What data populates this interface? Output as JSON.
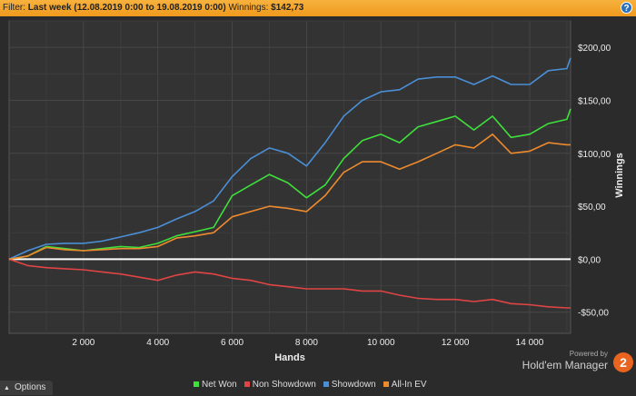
{
  "filter": {
    "label": "Filter:",
    "value": "Last week (12.08.2019 0:00 to 19.08.2019 0:00)",
    "winnings_label": "Winnings:",
    "winnings_value": "$142,73",
    "help": "?"
  },
  "options": {
    "label": "Options"
  },
  "brand": {
    "powered_by": "Powered by",
    "name": "Hold'em Manager",
    "logo": "2"
  },
  "colors": {
    "net_won": "#3ee03b",
    "non_showdown": "#e04444",
    "showdown": "#4a8fd6",
    "all_in_ev": "#ee8a2e"
  },
  "chart_data": {
    "type": "line",
    "xlabel": "Hands",
    "ylabel": "Winnings",
    "xlim": [
      0,
      15100
    ],
    "ylim": [
      -70,
      225
    ],
    "x_ticks": [
      2000,
      4000,
      6000,
      8000,
      10000,
      12000,
      14000
    ],
    "x_tick_labels": [
      "2 000",
      "4 000",
      "6 000",
      "8 000",
      "10 000",
      "12 000",
      "14 000"
    ],
    "y_ticks": [
      -50,
      0,
      50,
      100,
      150,
      200
    ],
    "y_tick_labels": [
      "-$50,00",
      "$0,00",
      "$50,00",
      "$100,00",
      "$150,00",
      "$200,00"
    ],
    "grid": true,
    "legend_position": "bottom",
    "x": [
      0,
      500,
      1000,
      1500,
      2000,
      2500,
      3000,
      3500,
      4000,
      4500,
      5000,
      5500,
      6000,
      6500,
      7000,
      7500,
      8000,
      8500,
      9000,
      9500,
      10000,
      10500,
      11000,
      11500,
      12000,
      12500,
      13000,
      13500,
      14000,
      14500,
      15000,
      15100
    ],
    "series": [
      {
        "name": "Net Won",
        "color": "#3ee03b",
        "values": [
          0,
          3,
          12,
          10,
          8,
          10,
          12,
          11,
          15,
          22,
          26,
          30,
          60,
          70,
          80,
          72,
          58,
          70,
          95,
          112,
          118,
          110,
          125,
          130,
          135,
          122,
          135,
          115,
          118,
          128,
          132,
          142
        ]
      },
      {
        "name": "Non Showdown",
        "color": "#e04444",
        "values": [
          0,
          -6,
          -8,
          -9,
          -10,
          -12,
          -14,
          -17,
          -20,
          -15,
          -12,
          -14,
          -18,
          -20,
          -24,
          -26,
          -28,
          -28,
          -28,
          -30,
          -30,
          -34,
          -37,
          -38,
          -38,
          -40,
          -38,
          -42,
          -43,
          -45,
          -46,
          -46
        ]
      },
      {
        "name": "Showdown",
        "color": "#4a8fd6",
        "values": [
          0,
          8,
          14,
          15,
          15,
          17,
          21,
          25,
          30,
          38,
          45,
          55,
          78,
          95,
          105,
          100,
          88,
          110,
          135,
          150,
          158,
          160,
          170,
          172,
          172,
          165,
          173,
          165,
          165,
          178,
          180,
          190
        ]
      },
      {
        "name": "All-In EV",
        "color": "#ee8a2e",
        "values": [
          0,
          3,
          11,
          9,
          8,
          9,
          10,
          10,
          12,
          20,
          22,
          25,
          40,
          45,
          50,
          48,
          45,
          60,
          82,
          92,
          92,
          85,
          92,
          100,
          108,
          105,
          118,
          100,
          102,
          110,
          108,
          108
        ]
      }
    ]
  }
}
